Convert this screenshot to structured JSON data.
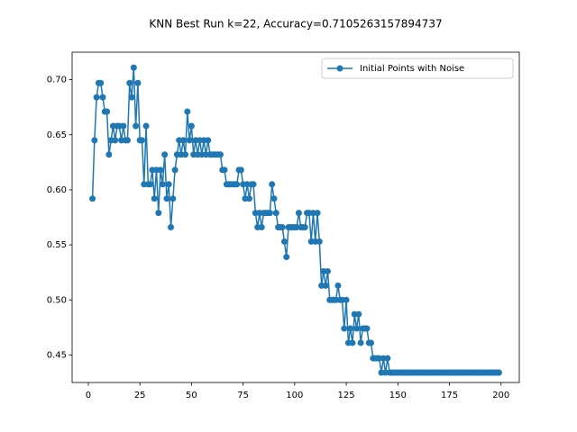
{
  "chart_data": {
    "type": "line",
    "title": "KNN Best Run k=22, Accuracy=0.7105263157894737",
    "x": [
      2,
      3,
      4,
      5,
      6,
      7,
      8,
      9,
      10,
      11,
      12,
      13,
      14,
      15,
      16,
      17,
      18,
      19,
      20,
      21,
      22,
      23,
      24,
      25,
      26,
      27,
      28,
      29,
      30,
      31,
      32,
      33,
      34,
      35,
      36,
      37,
      38,
      39,
      40,
      41,
      42,
      43,
      44,
      45,
      46,
      47,
      48,
      49,
      50,
      51,
      52,
      53,
      54,
      55,
      56,
      57,
      58,
      59,
      60,
      61,
      62,
      63,
      64,
      65,
      66,
      67,
      68,
      69,
      70,
      71,
      72,
      73,
      74,
      75,
      76,
      77,
      78,
      79,
      80,
      81,
      82,
      83,
      84,
      85,
      86,
      87,
      88,
      89,
      90,
      91,
      92,
      93,
      94,
      95,
      96,
      97,
      98,
      99,
      100,
      101,
      102,
      103,
      104,
      105,
      106,
      107,
      108,
      109,
      110,
      111,
      112,
      113,
      114,
      115,
      116,
      117,
      118,
      119,
      120,
      121,
      122,
      123,
      124,
      125,
      126,
      127,
      128,
      129,
      130,
      131,
      132,
      133,
      134,
      135,
      136,
      137,
      138,
      139,
      140,
      141,
      142,
      143,
      144,
      145,
      146,
      147,
      148,
      149,
      150,
      151,
      152,
      153,
      154,
      155,
      156,
      157,
      158,
      159,
      160,
      161,
      162,
      163,
      164,
      165,
      166,
      167,
      168,
      169,
      170,
      171,
      172,
      173,
      174,
      175,
      176,
      177,
      178,
      179,
      180,
      181,
      182,
      183,
      184,
      185,
      186,
      187,
      188,
      189,
      190,
      191,
      192,
      193,
      194,
      195,
      196,
      197,
      198,
      199
    ],
    "series": [
      {
        "name": "Initial Points with Noise",
        "color": "#1f77b4",
        "values": [
          0.592,
          0.645,
          0.684,
          0.697,
          0.697,
          0.684,
          0.671,
          0.671,
          0.632,
          0.645,
          0.658,
          0.645,
          0.658,
          0.658,
          0.645,
          0.658,
          0.645,
          0.645,
          0.697,
          0.684,
          0.711,
          0.658,
          0.697,
          0.645,
          0.645,
          0.605,
          0.658,
          0.605,
          0.605,
          0.618,
          0.592,
          0.618,
          0.579,
          0.618,
          0.605,
          0.632,
          0.592,
          0.605,
          0.566,
          0.592,
          0.618,
          0.632,
          0.645,
          0.632,
          0.645,
          0.632,
          0.671,
          0.645,
          0.658,
          0.632,
          0.645,
          0.632,
          0.645,
          0.632,
          0.645,
          0.632,
          0.645,
          0.632,
          0.632,
          0.632,
          0.632,
          0.632,
          0.632,
          0.618,
          0.618,
          0.605,
          0.605,
          0.605,
          0.605,
          0.605,
          0.605,
          0.618,
          0.618,
          0.605,
          0.592,
          0.605,
          0.592,
          0.605,
          0.605,
          0.579,
          0.566,
          0.579,
          0.566,
          0.579,
          0.579,
          0.579,
          0.579,
          0.605,
          0.592,
          0.579,
          0.566,
          0.566,
          0.566,
          0.553,
          0.539,
          0.566,
          0.566,
          0.566,
          0.566,
          0.566,
          0.579,
          0.566,
          0.566,
          0.566,
          0.579,
          0.579,
          0.553,
          0.579,
          0.553,
          0.579,
          0.553,
          0.513,
          0.526,
          0.513,
          0.526,
          0.5,
          0.5,
          0.5,
          0.5,
          0.513,
          0.5,
          0.5,
          0.474,
          0.5,
          0.461,
          0.474,
          0.461,
          0.487,
          0.474,
          0.487,
          0.461,
          0.474,
          0.474,
          0.474,
          0.461,
          0.461,
          0.447,
          0.447,
          0.447,
          0.447,
          0.434,
          0.447,
          0.434,
          0.447,
          0.434,
          0.434,
          0.434,
          0.434,
          0.434,
          0.434,
          0.434,
          0.434,
          0.434,
          0.434,
          0.434,
          0.434,
          0.434,
          0.434,
          0.434,
          0.434,
          0.434,
          0.434,
          0.434,
          0.434,
          0.434,
          0.434,
          0.434,
          0.434,
          0.434,
          0.434,
          0.434,
          0.434,
          0.434,
          0.434,
          0.434,
          0.434,
          0.434,
          0.434,
          0.434,
          0.434,
          0.434,
          0.434,
          0.434,
          0.434,
          0.434,
          0.434,
          0.434,
          0.434,
          0.434,
          0.434,
          0.434,
          0.434,
          0.434,
          0.434,
          0.434,
          0.434,
          0.434,
          0.434
        ]
      }
    ],
    "xlim": [
      -7.85,
      208.85
    ],
    "xticks": [
      0,
      25,
      50,
      75,
      100,
      125,
      150,
      175,
      200
    ],
    "ylim": [
      0.425,
      0.725
    ],
    "yticks": [
      0.45,
      {
        "value": 0.5,
        "label": "0.50"
      },
      0.55,
      {
        "value": 0.6,
        "label": "0.60"
      },
      0.65,
      {
        "value": 0.7,
        "label": "0.70"
      }
    ],
    "legend": "upper right"
  }
}
